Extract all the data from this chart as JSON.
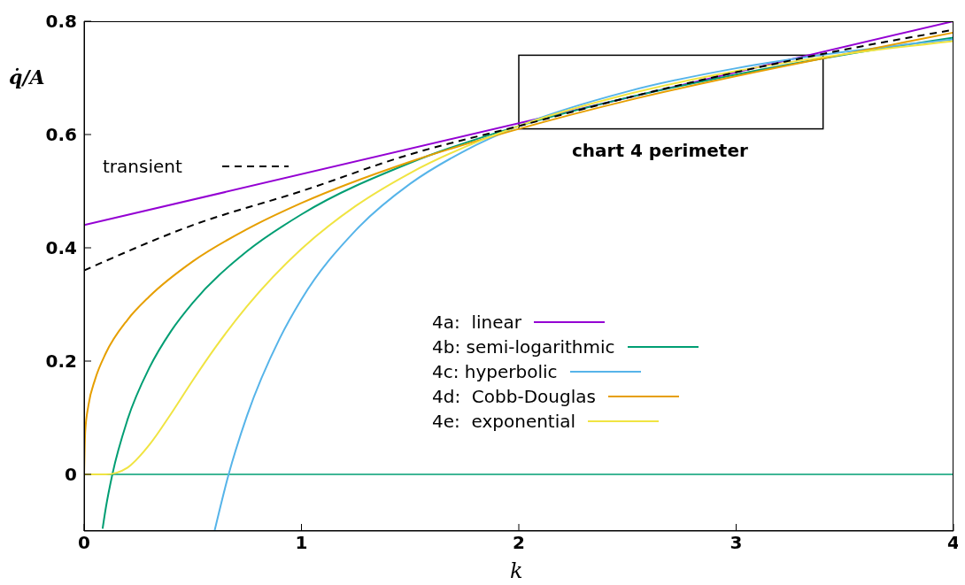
{
  "chart_data": {
    "type": "line",
    "xlabel": "k",
    "ylabel": "q̇/A",
    "xlim": [
      0,
      4
    ],
    "xticks": [
      0,
      1,
      2,
      3,
      4
    ],
    "ylim": [
      -0.1,
      0.8
    ],
    "yticks": [
      0,
      0.2,
      0.4,
      0.6,
      0.8
    ],
    "grid": false,
    "legend": "left",
    "marker": "none",
    "ref_lines": [
      {
        "axis": "y",
        "value": 0,
        "color": "#009e73"
      }
    ],
    "annotations": [
      "chart 4 perimeter"
    ],
    "series": [
      {
        "name": "4a:  linear",
        "color": "#9400d3",
        "x": [
          0,
          4
        ],
        "values": [
          0.44,
          0.8
        ]
      },
      {
        "name": "4b: semi-logarithmic",
        "color": "#009e73",
        "x": [
          0.085,
          0.1,
          0.13,
          0.2,
          0.3,
          0.4,
          0.5,
          0.75,
          1,
          1.5,
          2,
          2.5,
          3,
          3.5,
          4
        ],
        "values": [
          -0.096,
          -0.059,
          0,
          0.097,
          0.188,
          0.253,
          0.303,
          0.394,
          0.459,
          0.55,
          0.615,
          0.665,
          0.706,
          0.741,
          0.771
        ]
      },
      {
        "name": "4c: hyperbolic",
        "color": "#56b4e9",
        "x": [
          0.6,
          0.665,
          0.75,
          0.9,
          1,
          1.25,
          1.5,
          1.75,
          2,
          2.5,
          3,
          3.5,
          4
        ],
        "values": [
          -0.1,
          0,
          0.104,
          0.24,
          0.309,
          0.431,
          0.513,
          0.571,
          0.615,
          0.676,
          0.717,
          0.746,
          0.768
        ]
      },
      {
        "name": "4d:  Cobb-Douglas",
        "color": "#e69f00",
        "x": [
          0,
          0.005,
          0.02,
          0.05,
          0.1,
          0.2,
          0.3,
          0.5,
          0.75,
          1,
          1.5,
          2,
          2.5,
          3,
          3.5,
          4
        ],
        "values": [
          0,
          0.075,
          0.122,
          0.167,
          0.214,
          0.273,
          0.314,
          0.376,
          0.433,
          0.479,
          0.552,
          0.61,
          0.66,
          0.703,
          0.742,
          0.78
        ]
      },
      {
        "name": "4e:  exponential",
        "color": "#f0e442",
        "x": [
          0,
          0.1,
          0.15,
          0.2,
          0.3,
          0.4,
          0.5,
          0.6,
          0.75,
          1,
          1.25,
          1.5,
          2,
          2.5,
          3,
          3.5,
          4
        ],
        "values": [
          0,
          0,
          0.003,
          0.012,
          0.052,
          0.107,
          0.166,
          0.222,
          0.297,
          0.398,
          0.474,
          0.532,
          0.615,
          0.671,
          0.712,
          0.742,
          0.765
        ]
      },
      {
        "name": "transient",
        "color": "#000000",
        "line_style": "dashed",
        "x": [
          0,
          0.5,
          1,
          1.5,
          2,
          2.5,
          3,
          3.5,
          4
        ],
        "values": [
          0.36,
          0.44,
          0.5,
          0.565,
          0.615,
          0.665,
          0.71,
          0.75,
          0.785
        ]
      }
    ]
  }
}
